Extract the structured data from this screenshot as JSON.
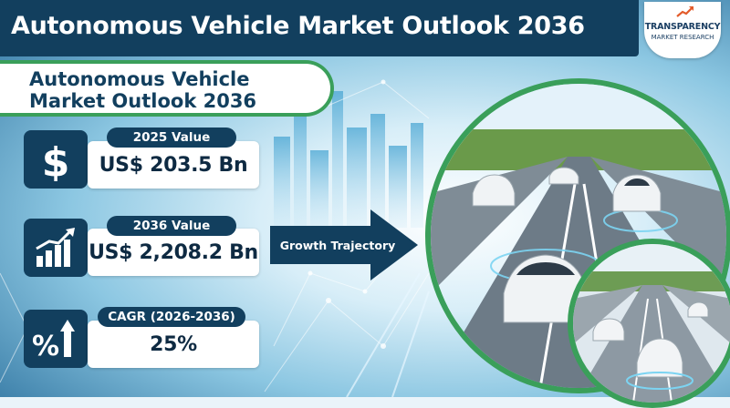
{
  "banner": {
    "title": "Autonomous Vehicle Market Outlook 2036"
  },
  "logo": {
    "line1": "TRANSPARENCY",
    "line2": "MARKET RESEARCH"
  },
  "subtitle": "Autonomous Vehicle\nMarket Outlook 2036",
  "stats": [
    {
      "label": "2025 Value",
      "value": "US$ 203.5 Bn",
      "icon": "dollar-icon"
    },
    {
      "label": "2036 Value",
      "value": "US$ 2,208.2 Bn",
      "icon": "bar-chart-growth-icon"
    },
    {
      "label": "CAGR (2026-2036)",
      "value": "25%",
      "icon": "percent-arrow-icon"
    }
  ],
  "arrow": {
    "label": "Growth Trajectory"
  },
  "colors": {
    "navy": "#123f5e",
    "green": "#3a9f5a",
    "white": "#ffffff"
  }
}
